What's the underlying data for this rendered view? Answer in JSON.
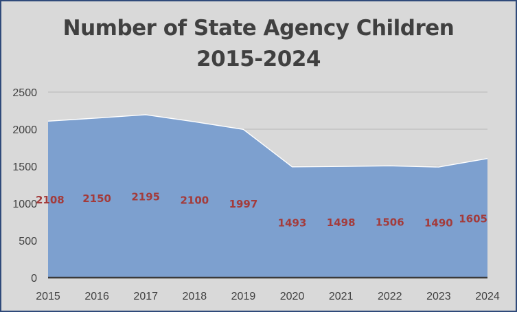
{
  "chart_data": {
    "type": "area",
    "title_line1": "Number of State Agency Children",
    "title_line2": "2015-2024",
    "categories": [
      "2015",
      "2016",
      "2017",
      "2018",
      "2019",
      "2020",
      "2021",
      "2022",
      "2023",
      "2024"
    ],
    "values": [
      2108,
      2150,
      2195,
      2100,
      1997,
      1493,
      1498,
      1506,
      1490,
      1605
    ],
    "data_labels": [
      "2108",
      "2150",
      "2195",
      "2100",
      "1997",
      "1493",
      "1498",
      "1506",
      "1490",
      "1605"
    ],
    "yticks": [
      0,
      500,
      1000,
      1500,
      2000,
      2500
    ],
    "ylim": [
      0,
      2500
    ],
    "xlabel": "",
    "ylabel": "",
    "grid": true,
    "colors": {
      "fill": "#7da0cf",
      "outline": "#ffffff",
      "label": "#a33b3b",
      "axis": "#3a3a3a",
      "grid": "#bfbfbf",
      "background": "#d9d9d9"
    }
  }
}
